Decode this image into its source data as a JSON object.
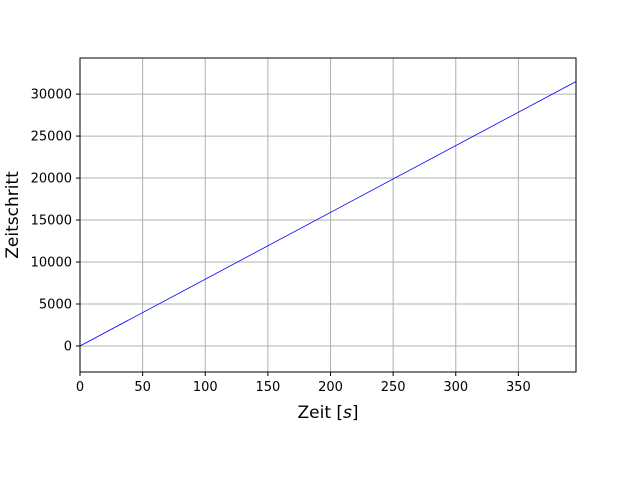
{
  "chart_data": {
    "type": "line",
    "title": "",
    "xlabel_main": "Zeit [",
    "xlabel_var": "s",
    "xlabel_end": "]",
    "ylabel": "Zeitschritt",
    "xlim": [
      0,
      396
    ],
    "ylim": [
      -3100,
      34300
    ],
    "xticks": [
      0,
      50,
      100,
      150,
      200,
      250,
      300,
      350
    ],
    "yticks": [
      0,
      5000,
      10000,
      15000,
      20000,
      25000,
      30000
    ],
    "grid": true,
    "series": [
      {
        "color": "#0000ff",
        "x": [
          0,
          396
        ],
        "y": [
          0,
          31500
        ]
      }
    ]
  }
}
